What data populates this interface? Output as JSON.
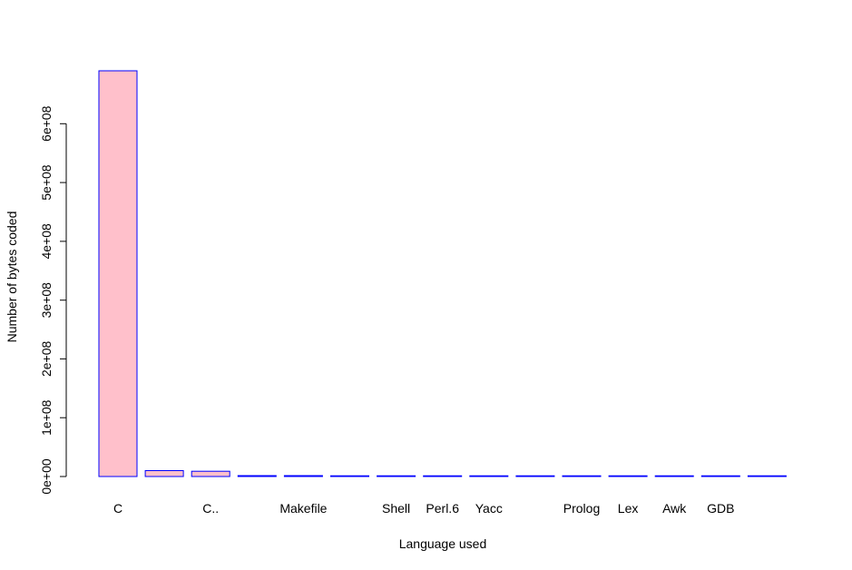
{
  "chart_data": {
    "type": "bar",
    "xlabel": "Language used",
    "ylabel": "Number of bytes coded",
    "categories": [
      "C",
      "",
      "C..",
      "",
      "Makefile",
      "",
      "Shell",
      "Perl.6",
      "Yacc",
      "",
      "Prolog",
      "Lex",
      "Awk",
      "GDB",
      ""
    ],
    "values": [
      690000000,
      10000000,
      9000000,
      1500000,
      1500000,
      400000,
      300000,
      250000,
      200000,
      150000,
      120000,
      100000,
      80000,
      60000,
      40000
    ],
    "y_ticks": [
      0,
      100000000,
      200000000,
      300000000,
      400000000,
      500000000,
      600000000
    ],
    "y_tick_labels": [
      "0e+00",
      "1e+08",
      "2e+08",
      "3e+08",
      "4e+08",
      "5e+08",
      "6e+08"
    ],
    "ylim": [
      0,
      690000000
    ],
    "bar_fill": "#ffc0cb",
    "bar_stroke": "#0000ff",
    "grid": false,
    "legend": "none"
  }
}
